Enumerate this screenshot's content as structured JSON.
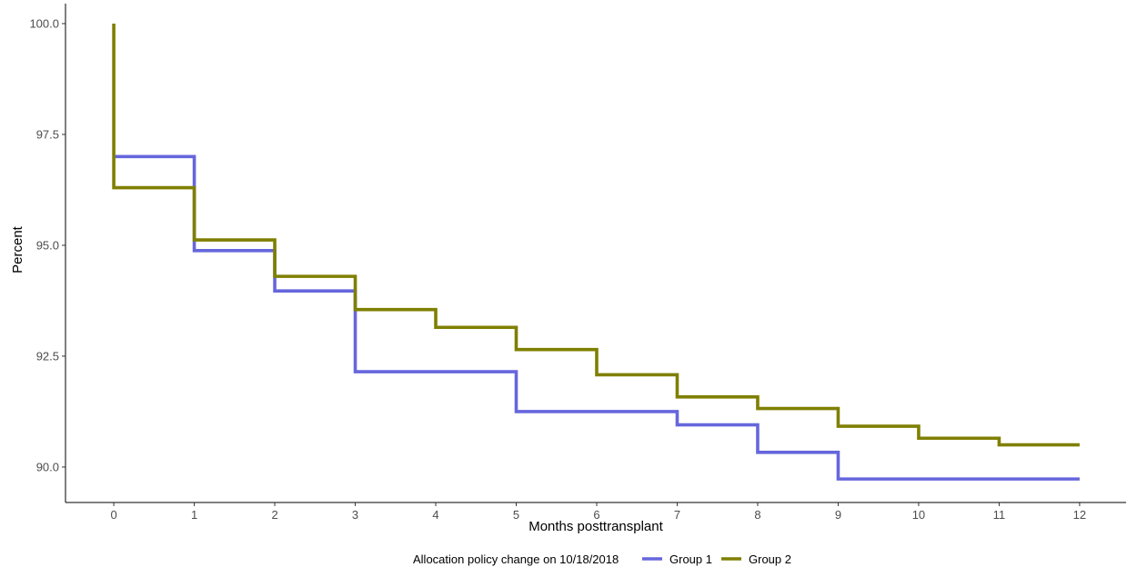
{
  "chart_data": {
    "type": "line",
    "step": true,
    "xlabel": "Months posttransplant",
    "ylabel": "Percent",
    "xlim": [
      -0.6,
      12.6
    ],
    "ylim": [
      89.2,
      100.45
    ],
    "x_ticks": [
      0,
      1,
      2,
      3,
      4,
      5,
      6,
      7,
      8,
      9,
      10,
      11,
      12
    ],
    "y_ticks": [
      90.0,
      92.5,
      95.0,
      97.5,
      100.0
    ],
    "y_tick_labels": [
      "90.0",
      "92.5",
      "95.0",
      "97.5",
      "100.0"
    ],
    "grid": false,
    "legend": {
      "title": "Allocation policy change on 10/18/2018",
      "position": "bottom"
    },
    "series": [
      {
        "name": "Group 1",
        "color": "#6666dd",
        "x": [
          0,
          1,
          2,
          3,
          4,
          5,
          6,
          7,
          8,
          9,
          10,
          11,
          12
        ],
        "y": [
          97.0,
          94.88,
          93.97,
          92.15,
          92.15,
          91.25,
          91.25,
          90.95,
          90.33,
          89.73,
          89.73,
          89.73,
          89.73
        ]
      },
      {
        "name": "Group 2",
        "color": "#7f7f00",
        "x": [
          0,
          1,
          2,
          3,
          4,
          5,
          6,
          7,
          8,
          9,
          10,
          11,
          12
        ],
        "y": [
          96.3,
          95.12,
          94.3,
          93.55,
          93.15,
          92.65,
          92.08,
          91.58,
          91.32,
          90.92,
          90.65,
          90.5,
          90.5
        ]
      }
    ]
  }
}
